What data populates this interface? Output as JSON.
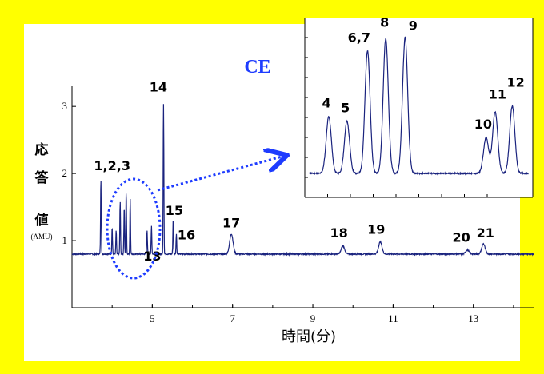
{
  "colors": {
    "frame": "#ffff00",
    "trace": "#1a237e",
    "highlight": "#1e3cff",
    "axis": "#000000"
  },
  "chart_data": [
    {
      "type": "line",
      "title": "",
      "xlabel": "時間(分)",
      "ylabel": "応答値",
      "ylabel_unit": "(AMU)",
      "xlim": [
        3,
        14.5
      ],
      "ylim": [
        0,
        3.3
      ],
      "xticks": [
        "5",
        "7",
        "9",
        "11",
        "13"
      ],
      "yticks": [
        "1",
        "2",
        "3"
      ],
      "baseline": 0.8,
      "peaks": [
        {
          "label": "1,2,3",
          "x": 3.72,
          "height": 1.92,
          "label_x": 4.0,
          "label_y": 2.05
        },
        {
          "label": "13",
          "x": 4.87,
          "height": 1.15,
          "label_x": 5.0,
          "label_y": 0.7
        },
        {
          "label": "14",
          "x": 5.28,
          "height": 3.05,
          "label_x": 5.15,
          "label_y": 3.22
        },
        {
          "label": "15",
          "x": 5.52,
          "height": 1.32,
          "label_x": 5.55,
          "label_y": 1.38
        },
        {
          "label": "16",
          "x": 5.6,
          "height": 1.1,
          "label_x": 5.85,
          "label_y": 1.02
        },
        {
          "label": "17",
          "x": 6.97,
          "height": 1.1,
          "label_x": 6.97,
          "label_y": 1.2
        },
        {
          "label": "18",
          "x": 9.75,
          "height": 0.92,
          "label_x": 9.65,
          "label_y": 1.05
        },
        {
          "label": "19",
          "x": 10.68,
          "height": 0.98,
          "label_x": 10.58,
          "label_y": 1.1
        },
        {
          "label": "20",
          "x": 12.85,
          "height": 0.86,
          "label_x": 12.7,
          "label_y": 0.98
        },
        {
          "label": "21",
          "x": 13.25,
          "height": 0.95,
          "label_x": 13.3,
          "label_y": 1.05
        }
      ],
      "unlabeled_peaks": [
        {
          "x": 4.0,
          "height": 1.2
        },
        {
          "x": 4.1,
          "height": 1.15
        },
        {
          "x": 4.2,
          "height": 1.58
        },
        {
          "x": 4.3,
          "height": 1.5
        },
        {
          "x": 4.35,
          "height": 1.72
        },
        {
          "x": 4.45,
          "height": 1.62
        },
        {
          "x": 4.98,
          "height": 1.22
        }
      ],
      "annotation": {
        "label": "CE"
      }
    },
    {
      "type": "line",
      "title": "",
      "inset": true,
      "xlim": [
        0,
        100
      ],
      "ylim": [
        0,
        1
      ],
      "peaks": [
        {
          "label": "4",
          "x": 10.5,
          "height": 0.38,
          "label_x": 9.5,
          "label_y": 0.44
        },
        {
          "label": "5",
          "x": 18.5,
          "height": 0.35,
          "label_x": 17.8,
          "label_y": 0.41
        },
        {
          "label": "6,7",
          "x": 27.5,
          "height": 0.82,
          "label_x": 23.8,
          "label_y": 0.88
        },
        {
          "label": "8",
          "x": 35.5,
          "height": 0.9,
          "label_x": 35.0,
          "label_y": 0.98
        },
        {
          "label": "9",
          "x": 44.0,
          "height": 0.91,
          "label_x": 47.5,
          "label_y": 0.96
        },
        {
          "label": "10",
          "x": 79.5,
          "height": 0.24,
          "label_x": 78.2,
          "label_y": 0.3
        },
        {
          "label": "11",
          "x": 83.5,
          "height": 0.41,
          "label_x": 84.5,
          "label_y": 0.5
        },
        {
          "label": "12",
          "x": 91.0,
          "height": 0.45,
          "label_x": 92.5,
          "label_y": 0.58
        }
      ]
    }
  ]
}
